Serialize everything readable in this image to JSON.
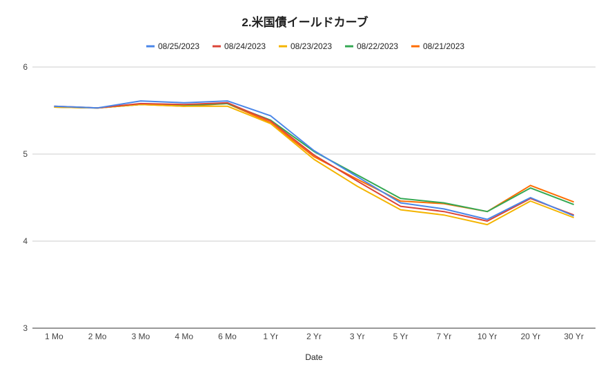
{
  "chart_data": {
    "type": "line",
    "title": "2.米国債イールドカーブ",
    "xlabel": "Date",
    "ylabel": "",
    "ylim": [
      3,
      6
    ],
    "yticks": [
      3,
      4,
      5,
      6
    ],
    "grid": true,
    "legend_position": "top",
    "categories": [
      "1 Mo",
      "2 Mo",
      "3 Mo",
      "4 Mo",
      "6 Mo",
      "1 Yr",
      "2 Yr",
      "3 Yr",
      "5 Yr",
      "7 Yr",
      "10 Yr",
      "20 Yr",
      "30 Yr"
    ],
    "series": [
      {
        "name": "08/25/2023",
        "color": "#4a86e8",
        "values": [
          5.55,
          5.53,
          5.61,
          5.59,
          5.61,
          5.44,
          5.04,
          4.74,
          4.44,
          4.37,
          4.25,
          4.5,
          4.29
        ]
      },
      {
        "name": "08/24/2023",
        "color": "#db4437",
        "values": [
          5.55,
          5.53,
          5.58,
          5.57,
          5.59,
          5.38,
          4.99,
          4.69,
          4.4,
          4.34,
          4.23,
          4.49,
          4.3
        ]
      },
      {
        "name": "08/23/2023",
        "color": "#f4b400",
        "values": [
          5.54,
          5.53,
          5.57,
          5.55,
          5.55,
          5.35,
          4.94,
          4.63,
          4.36,
          4.3,
          4.19,
          4.46,
          4.27
        ]
      },
      {
        "name": "08/22/2023",
        "color": "#34a853",
        "values": [
          5.54,
          5.53,
          5.57,
          5.56,
          5.58,
          5.39,
          5.03,
          4.76,
          4.49,
          4.44,
          4.34,
          4.61,
          4.42
        ]
      },
      {
        "name": "08/21/2023",
        "color": "#ff6d01",
        "values": [
          5.54,
          5.53,
          5.57,
          5.55,
          5.58,
          5.36,
          4.97,
          4.71,
          4.46,
          4.43,
          4.34,
          4.64,
          4.45
        ]
      }
    ]
  }
}
